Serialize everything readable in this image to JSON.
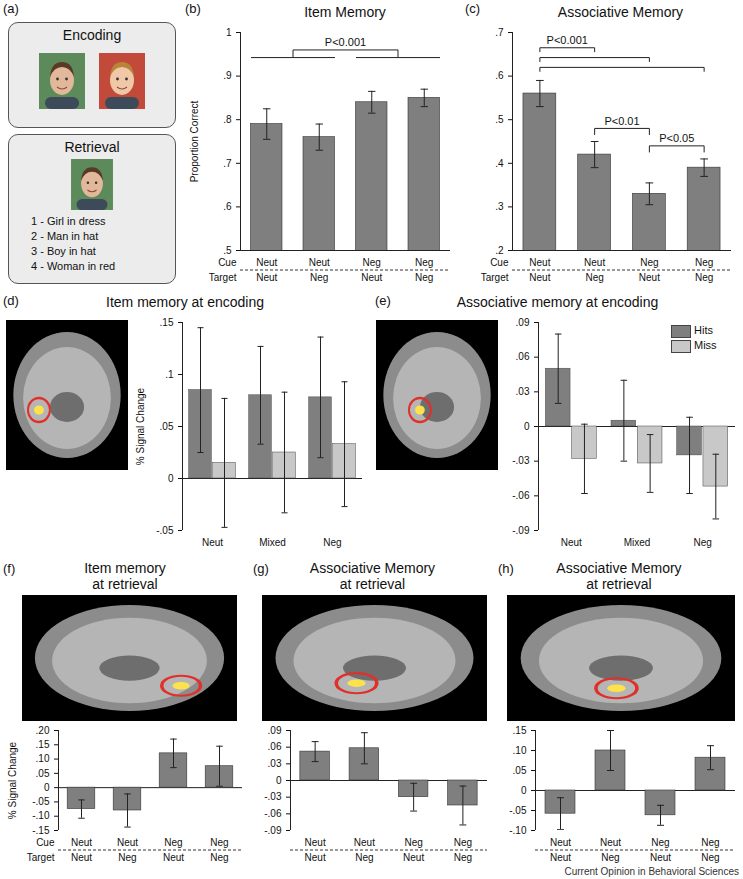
{
  "chart_data": [
    {
      "label": "(b)",
      "type": "bar",
      "title": "Item Memory",
      "y_label": "Proportion Correct",
      "category_rows": [
        "Cue",
        "Target"
      ],
      "categories": [
        [
          "Neut",
          "Neut"
        ],
        [
          "Neut",
          "Neg"
        ],
        [
          "Neg",
          "Neut"
        ],
        [
          "Neg",
          "Neg"
        ]
      ],
      "values": [
        0.79,
        0.76,
        0.84,
        0.85
      ],
      "errors": [
        0.035,
        0.03,
        0.025,
        0.02
      ],
      "color": "#7f7f7f",
      "ylim": [
        0.5,
        1
      ],
      "yticks": [
        {
          "value": 0.5,
          "label": ".5"
        },
        {
          "value": 0.6,
          "label": ".6"
        },
        {
          "value": 0.7,
          "label": ".7"
        },
        {
          "value": 0.8,
          "label": ".8"
        },
        {
          "value": 0.9,
          "label": ".9"
        },
        1
      ],
      "grid": false,
      "annotations": [
        {
          "text": "P<0.001",
          "groups": [
            [
              0,
              1
            ],
            [
              2,
              3
            ]
          ]
        }
      ]
    },
    {
      "label": "(c)",
      "type": "bar",
      "title": "Associative Memory",
      "category_rows": [
        "Cue",
        "Target"
      ],
      "categories": [
        [
          "Neut",
          "Neut"
        ],
        [
          "Neut",
          "Neg"
        ],
        [
          "Neg",
          "Neut"
        ],
        [
          "Neg",
          "Neg"
        ]
      ],
      "values": [
        0.56,
        0.42,
        0.33,
        0.39
      ],
      "errors": [
        0.03,
        0.03,
        0.025,
        0.02
      ],
      "color": "#7f7f7f",
      "ylim": [
        0.2,
        0.7
      ],
      "yticks": [
        {
          "value": 0.2,
          "label": ".2"
        },
        {
          "value": 0.3,
          "label": ".3"
        },
        {
          "value": 0.4,
          "label": ".4"
        },
        {
          "value": 0.5,
          "label": ".5"
        },
        {
          "value": 0.6,
          "label": ".6"
        },
        {
          "value": 0.7,
          "label": ".7"
        }
      ],
      "grid": false,
      "annotations": [
        {
          "text": "P<0.001",
          "from": 0,
          "to": [
            1,
            2,
            3
          ]
        },
        {
          "text": "P<0.01",
          "from": 1,
          "to": 2
        },
        {
          "text": "P<0.05",
          "from": 2,
          "to": 3
        }
      ]
    },
    {
      "label": "(d)",
      "type": "bar",
      "title": "Item memory at encoding",
      "y_label": "% Signal Change",
      "categories": [
        "Neut",
        "Mixed",
        "Neg"
      ],
      "series": [
        {
          "color": "#7f7f7f",
          "values": [
            0.085,
            0.08,
            0.078
          ],
          "errors": [
            0.06,
            0.047,
            0.058
          ]
        },
        {
          "color": "#c8c8c8",
          "values": [
            0.015,
            0.025,
            0.033
          ],
          "errors": [
            0.062,
            0.058,
            0.06
          ]
        }
      ],
      "ylim": [
        -0.05,
        0.15
      ],
      "yticks": [
        {
          "value": -0.05,
          "label": "-.05"
        },
        0,
        {
          "value": 0.05,
          "label": ".05"
        },
        {
          "value": 0.1,
          "label": ".1"
        },
        {
          "value": 0.15,
          "label": ".15"
        }
      ],
      "grid": false
    },
    {
      "label": "(e)",
      "type": "bar",
      "title": "Associative memory at encoding",
      "categories": [
        "Neut",
        "Mixed",
        "Neg"
      ],
      "series": [
        {
          "name": "Hits",
          "color": "#7f7f7f",
          "values": [
            0.05,
            0.005,
            -0.025
          ],
          "errors": [
            0.03,
            0.035,
            0.033
          ]
        },
        {
          "name": "Miss",
          "color": "#c8c8c8",
          "values": [
            -0.028,
            -0.032,
            -0.052
          ],
          "errors": [
            0.03,
            0.025,
            0.028
          ]
        }
      ],
      "ylim": [
        -0.09,
        0.09
      ],
      "yticks": [
        {
          "value": -0.09,
          "label": "-.09"
        },
        {
          "value": -0.06,
          "label": "-.06"
        },
        {
          "value": -0.03,
          "label": "-.03"
        },
        0,
        {
          "value": 0.03,
          "label": ".03"
        },
        {
          "value": 0.06,
          "label": ".06"
        },
        {
          "value": 0.09,
          "label": ".09"
        }
      ],
      "grid": false,
      "legend": "top-right"
    },
    {
      "label": "(f)",
      "type": "bar",
      "title": "Item memory\nat retrieval",
      "y_label": "% Signal Change",
      "category_rows": [
        "Cue",
        "Target"
      ],
      "categories": [
        [
          "Neut",
          "Neut"
        ],
        [
          "Neut",
          "Neg"
        ],
        [
          "Neg",
          "Neut"
        ],
        [
          "Neg",
          "Neg"
        ]
      ],
      "values": [
        -0.075,
        -0.08,
        0.12,
        0.075
      ],
      "errors": [
        0.032,
        0.058,
        0.05,
        0.07
      ],
      "color": "#7f7f7f",
      "ylim": [
        -0.15,
        0.2
      ],
      "yticks": [
        {
          "value": -0.15,
          "label": "-.15"
        },
        {
          "value": -0.1,
          "label": "-.10"
        },
        {
          "value": -0.05,
          "label": "-.05"
        },
        0,
        {
          "value": 0.05,
          "label": ".05"
        },
        {
          "value": 0.1,
          "label": ".10"
        },
        {
          "value": 0.15,
          "label": ".15"
        },
        {
          "value": 0.2,
          "label": ".20"
        }
      ],
      "grid": false
    },
    {
      "label": "(g)",
      "type": "bar",
      "title": "Associative Memory\nat retrieval",
      "categories": [
        [
          "Neut",
          "Neut"
        ],
        [
          "Neut",
          "Neg"
        ],
        [
          "Neg",
          "Neut"
        ],
        [
          "Neg",
          "Neg"
        ]
      ],
      "values": [
        0.052,
        0.058,
        -0.03,
        -0.045
      ],
      "errors": [
        0.018,
        0.028,
        0.025,
        0.035
      ],
      "color": "#7f7f7f",
      "ylim": [
        -0.09,
        0.09
      ],
      "yticks": [
        {
          "value": -0.09,
          "label": "-.09"
        },
        {
          "value": -0.06,
          "label": "-.06"
        },
        {
          "value": -0.03,
          "label": "-.03"
        },
        0,
        {
          "value": 0.03,
          "label": ".03"
        },
        {
          "value": 0.06,
          "label": ".06"
        },
        {
          "value": 0.09,
          "label": ".09"
        }
      ],
      "grid": false
    },
    {
      "label": "(h)",
      "type": "bar",
      "title": "Associative Memory\nat retrieval",
      "categories": [
        [
          "Neut",
          "Neut"
        ],
        [
          "Neut",
          "Neg"
        ],
        [
          "Neg",
          "Neut"
        ],
        [
          "Neg",
          "Neg"
        ]
      ],
      "values": [
        -0.058,
        0.1,
        -0.062,
        0.082
      ],
      "errors": [
        0.04,
        0.05,
        0.025,
        0.03
      ],
      "color": "#7f7f7f",
      "ylim": [
        -0.1,
        0.15
      ],
      "yticks": [
        {
          "value": -0.1,
          "label": "-.10"
        },
        {
          "value": -0.05,
          "label": "-.05"
        },
        0,
        {
          "value": 0.05,
          "label": ".05"
        },
        {
          "value": 0.1,
          "label": ".10"
        },
        {
          "value": 0.15,
          "label": ".15"
        }
      ],
      "grid": false
    }
  ],
  "diagram": {
    "label": "(a)",
    "encoding": {
      "title": "Encoding"
    },
    "retrieval": {
      "title": "Retrieval",
      "options": [
        "1 - Girl in dress",
        "2 - Man in hat",
        "3 - Boy in hat",
        "4 - Woman in red"
      ]
    }
  },
  "credit": "Current Opinion in Behavioral Sciences"
}
